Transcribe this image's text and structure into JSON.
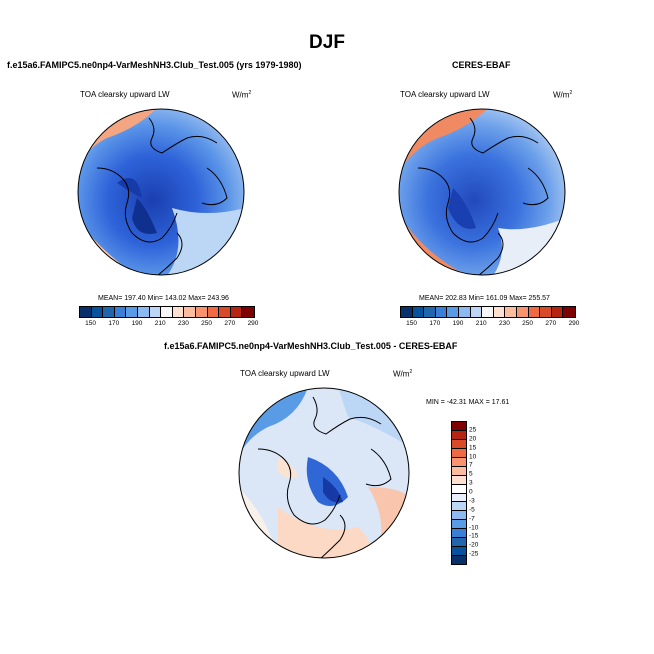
{
  "main_title": "DJF",
  "panels": {
    "model": {
      "title": "f.e15a6.FAMIPC5.ne0np4-VarMeshNH3.Club_Test.005 (yrs 1979-1980)",
      "var_label": "TOA clearsky upward LW",
      "units_base": "W/m",
      "units_sup": "2",
      "stats": "MEAN= 197.40  Min= 143.02  Max= 243.96"
    },
    "obs": {
      "title": "CERES-EBAF",
      "var_label": "TOA clearsky upward LW",
      "units_base": "W/m",
      "units_sup": "2",
      "stats": "MEAN= 202.83  Min= 161.09  Max= 255.57"
    },
    "diff": {
      "title": "f.e15a6.FAMIPC5.ne0np4-VarMeshNH3.Club_Test.005 - CERES-EBAF",
      "var_label": "TOA clearsky upward LW",
      "units_base": "W/m",
      "units_sup": "2",
      "stats": "MIN = -42.31 MAX =  17.61"
    }
  },
  "colorbar_abs": {
    "labels": [
      "150",
      "170",
      "190",
      "210",
      "230",
      "250",
      "270",
      "290"
    ],
    "colors": [
      "#08306b",
      "#08519c",
      "#2166ac",
      "#3a7fd5",
      "#5a9be6",
      "#8cb9ef",
      "#bcd6f5",
      "#f7f7f7",
      "#fde0d0",
      "#fbbca0",
      "#f7936e",
      "#ef6a44",
      "#d94a28",
      "#b52512",
      "#7f0000"
    ]
  },
  "colorbar_diff": {
    "labels": [
      "25",
      "20",
      "15",
      "10",
      "7",
      "5",
      "3",
      "0",
      "-3",
      "-5",
      "-7",
      "-10",
      "-15",
      "-20",
      "-25"
    ],
    "colors": [
      "#7f0000",
      "#b52512",
      "#d94a28",
      "#ef6a44",
      "#f7936e",
      "#fbbca0",
      "#fde0d0",
      "#ffffff",
      "#e8f0fb",
      "#bcd6f5",
      "#8cb9ef",
      "#5a9be6",
      "#3a7fd5",
      "#2166ac",
      "#08519c",
      "#08306b"
    ]
  },
  "colors": {
    "ocean_cold": "#2e5fd8",
    "deep_cold": "#1739a6",
    "warm": "#f4a582",
    "mid": "#8cb4ef",
    "neutral": "#dbe6f7"
  }
}
